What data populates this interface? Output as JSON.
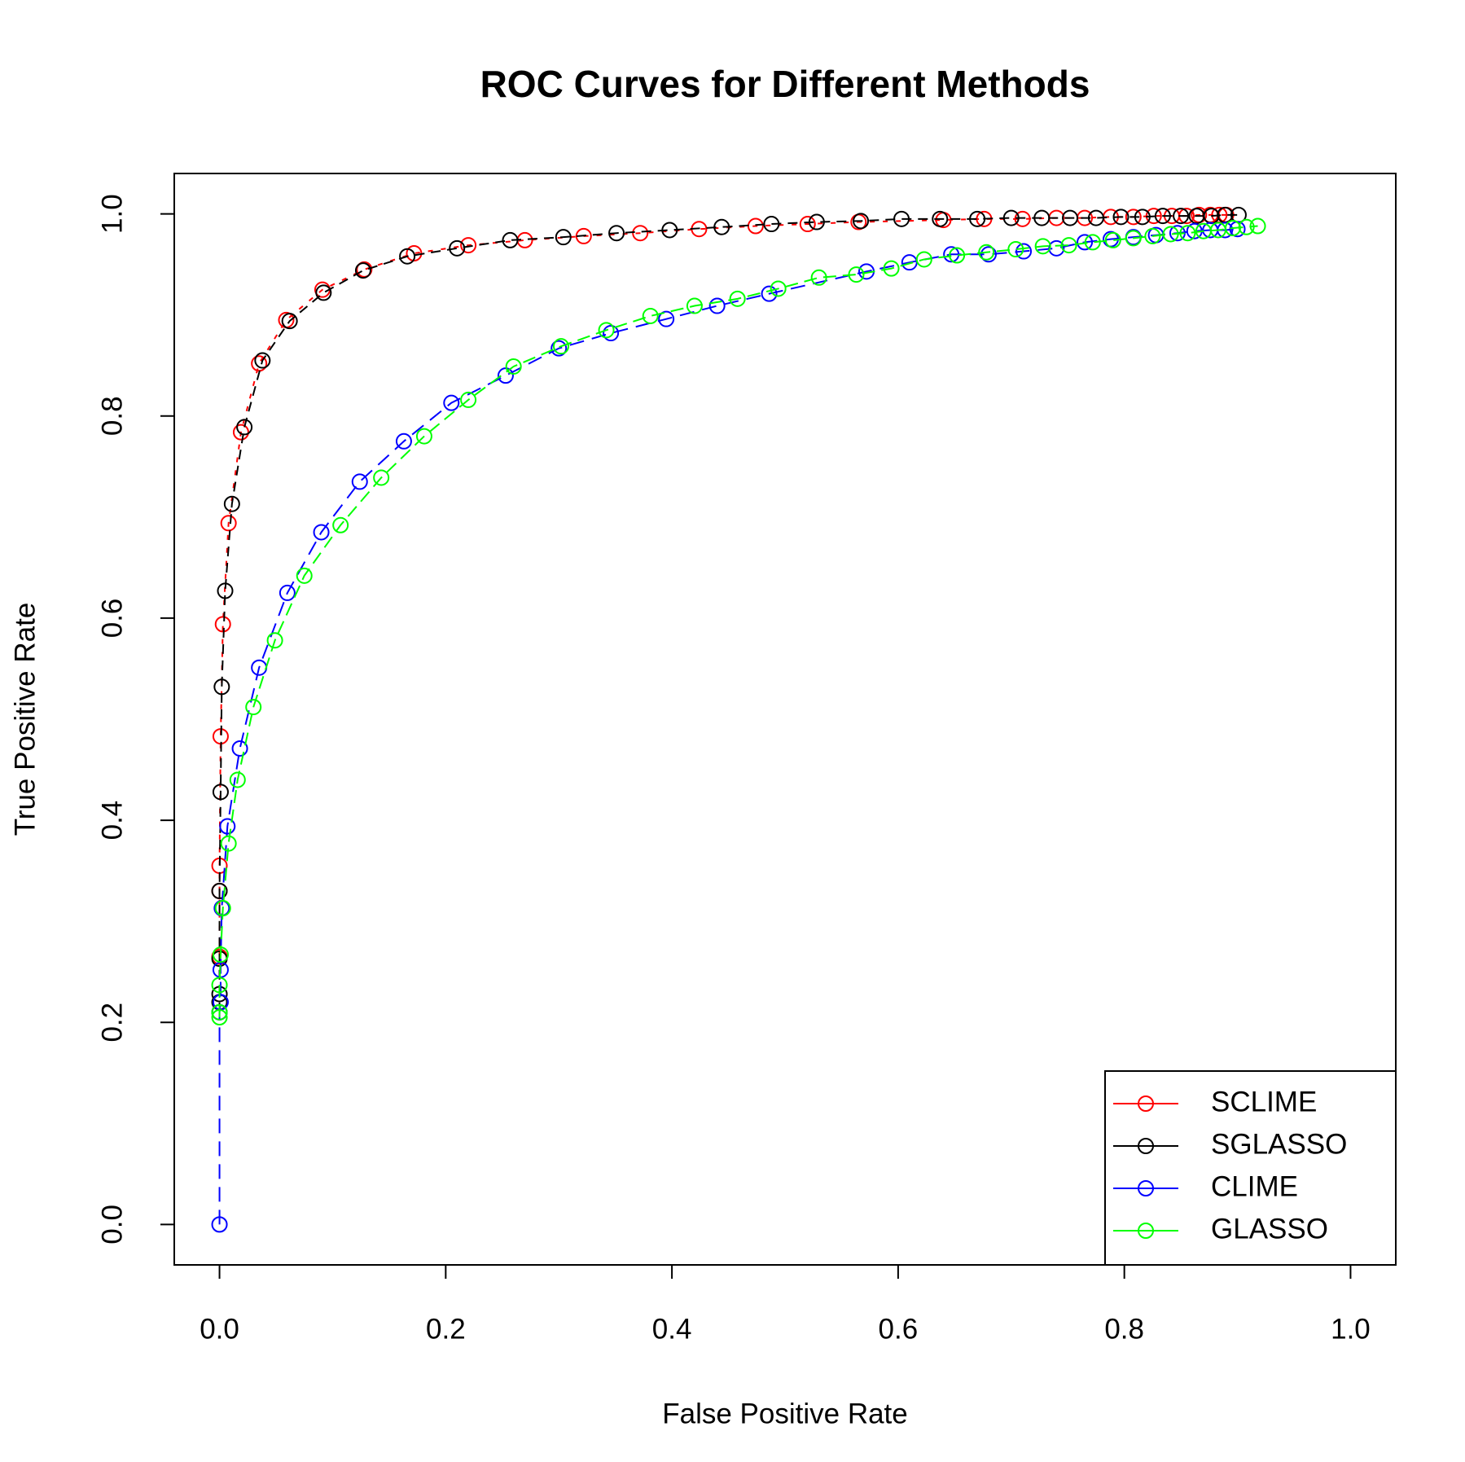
{
  "chart_data": {
    "type": "line",
    "title": "ROC Curves for Different Methods",
    "x_label": "False Positive Rate",
    "y_label": "True Positive Rate",
    "xlim": [
      -0.04,
      1.04
    ],
    "ylim": [
      -0.04,
      1.04
    ],
    "xticks": [
      {
        "value": 0,
        "label": "0.0"
      },
      {
        "value": 0.2,
        "label": "0.2"
      },
      {
        "value": 0.4,
        "label": "0.4"
      },
      {
        "value": 0.6,
        "label": "0.6"
      },
      {
        "value": 0.8,
        "label": "0.8"
      },
      {
        "value": 1,
        "label": "1.0"
      }
    ],
    "yticks": [
      {
        "value": 0,
        "label": "0.0"
      },
      {
        "value": 0.2,
        "label": "0.2"
      },
      {
        "value": 0.4,
        "label": "0.4"
      },
      {
        "value": 0.6,
        "label": "0.6"
      },
      {
        "value": 0.8,
        "label": "0.8"
      },
      {
        "value": 1,
        "label": "1.0"
      }
    ],
    "legend": "bottom-right",
    "series": [
      {
        "name": "SCLIME",
        "color": "#ff0000",
        "x": [
          0,
          0,
          0,
          0.001,
          0.003,
          0.008,
          0.019,
          0.035,
          0.059,
          0.091,
          0.128,
          0.172,
          0.22,
          0.27,
          0.322,
          0.372,
          0.424,
          0.474,
          0.52,
          0.565,
          0.64,
          0.676,
          0.71,
          0.74,
          0.765,
          0.788,
          0.808,
          0.826,
          0.842,
          0.855,
          0.866,
          0.876,
          0.884,
          0.89
        ],
        "y": [
          0.265,
          0.33,
          0.355,
          0.483,
          0.594,
          0.694,
          0.784,
          0.852,
          0.895,
          0.925,
          0.945,
          0.961,
          0.969,
          0.974,
          0.978,
          0.981,
          0.985,
          0.988,
          0.99,
          0.992,
          0.994,
          0.995,
          0.995,
          0.996,
          0.996,
          0.997,
          0.997,
          0.998,
          0.998,
          0.998,
          0.999,
          0.999,
          0.999,
          0.999
        ]
      },
      {
        "name": "SGLASSO",
        "color": "#000000",
        "x": [
          0,
          0,
          0,
          0,
          0,
          0.001,
          0.002,
          0.005,
          0.011,
          0.022,
          0.038,
          0.062,
          0.092,
          0.127,
          0.166,
          0.21,
          0.257,
          0.304,
          0.351,
          0.398,
          0.444,
          0.488,
          0.528,
          0.567,
          0.603,
          0.637,
          0.67,
          0.7,
          0.727,
          0.752,
          0.775,
          0.797,
          0.816,
          0.834,
          0.85,
          0.864,
          0.877,
          0.889,
          0.901
        ],
        "y": [
          0.21,
          0.22,
          0.228,
          0.263,
          0.33,
          0.428,
          0.532,
          0.627,
          0.713,
          0.789,
          0.855,
          0.894,
          0.922,
          0.944,
          0.958,
          0.966,
          0.974,
          0.977,
          0.981,
          0.984,
          0.987,
          0.99,
          0.992,
          0.993,
          0.995,
          0.995,
          0.995,
          0.996,
          0.996,
          0.996,
          0.996,
          0.997,
          0.997,
          0.998,
          0.998,
          0.998,
          0.998,
          0.999,
          0.999
        ]
      },
      {
        "name": "CLIME",
        "color": "#0000ff",
        "x": [
          0,
          0,
          0.001,
          0.001,
          0.002,
          0.007,
          0.018,
          0.035,
          0.06,
          0.09,
          0.124,
          0.163,
          0.205,
          0.253,
          0.3,
          0.346,
          0.395,
          0.44,
          0.486,
          0.572,
          0.61,
          0.647,
          0.68,
          0.711,
          0.74,
          0.765,
          0.788,
          0.808,
          0.828,
          0.847,
          0.862,
          0.876,
          0.889,
          0.9
        ],
        "y": [
          0,
          0.21,
          0.22,
          0.252,
          0.313,
          0.394,
          0.471,
          0.551,
          0.625,
          0.685,
          0.735,
          0.775,
          0.813,
          0.84,
          0.867,
          0.882,
          0.896,
          0.909,
          0.921,
          0.943,
          0.952,
          0.96,
          0.96,
          0.963,
          0.966,
          0.972,
          0.975,
          0.977,
          0.979,
          0.981,
          0.983,
          0.984,
          0.984,
          0.985
        ]
      },
      {
        "name": "GLASSO",
        "color": "#00ff00",
        "x": [
          0,
          0,
          0,
          0.001,
          0.003,
          0.008,
          0.016,
          0.03,
          0.049,
          0.075,
          0.107,
          0.143,
          0.181,
          0.22,
          0.26,
          0.302,
          0.342,
          0.381,
          0.42,
          0.458,
          0.494,
          0.53,
          0.563,
          0.594,
          0.623,
          0.652,
          0.678,
          0.704,
          0.728,
          0.751,
          0.772,
          0.79,
          0.808,
          0.825,
          0.841,
          0.856,
          0.87,
          0.883,
          0.896,
          0.908,
          0.918
        ],
        "y": [
          0.205,
          0.21,
          0.237,
          0.267,
          0.313,
          0.377,
          0.44,
          0.512,
          0.578,
          0.642,
          0.692,
          0.739,
          0.78,
          0.816,
          0.849,
          0.869,
          0.885,
          0.899,
          0.909,
          0.916,
          0.926,
          0.937,
          0.94,
          0.946,
          0.955,
          0.959,
          0.962,
          0.965,
          0.968,
          0.969,
          0.972,
          0.974,
          0.976,
          0.978,
          0.98,
          0.981,
          0.983,
          0.984,
          0.986,
          0.987,
          0.988
        ]
      }
    ]
  }
}
